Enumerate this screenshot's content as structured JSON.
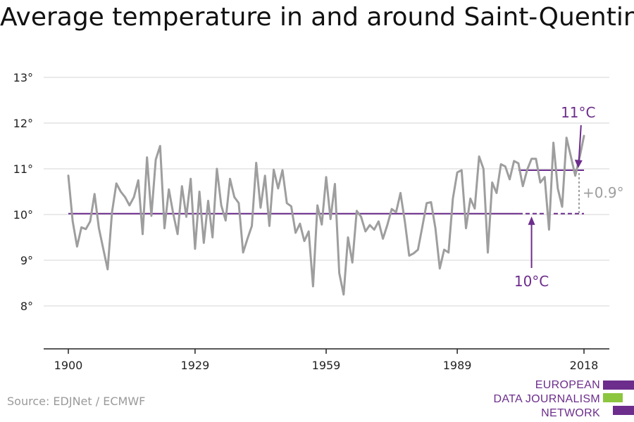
{
  "title": "Average temperature in and around Saint-Quentin",
  "source": "Source: EDJNet / ECMWF",
  "logo": {
    "lines": [
      "EUROPEAN",
      "DATA JOURNALISM",
      "NETWORK"
    ],
    "colors": {
      "purple": "#6c2d8c",
      "green": "#8cc63f"
    }
  },
  "colors": {
    "series": "#9e9e9e",
    "reference": "#6c2d8c",
    "difference": "#9e9e9e",
    "grid": "#dddddd",
    "axis": "#222222",
    "text": "#222222"
  },
  "chart_data": {
    "type": "line",
    "title": "Average temperature in and around Saint-Quentin",
    "xlabel": "",
    "ylabel": "",
    "xlim": [
      1900,
      2018
    ],
    "ylim": [
      7,
      13
    ],
    "y_ticks": [
      8,
      9,
      10,
      11,
      12,
      13
    ],
    "y_tick_labels": [
      "8°",
      "9°",
      "10°",
      "11°",
      "12°",
      "13°"
    ],
    "x_ticks": [
      1900,
      1929,
      1959,
      1989,
      2018
    ],
    "x_tick_labels": [
      "1900",
      "1929",
      "1959",
      "1989",
      "2018"
    ],
    "grid": true,
    "series": [
      {
        "x": [
          1900,
          1901,
          1902,
          1903,
          1904,
          1905,
          1906,
          1907,
          1908,
          1909,
          1910,
          1911,
          1912,
          1913,
          1914,
          1915,
          1916,
          1917,
          1918,
          1919,
          1920,
          1921,
          1922,
          1923,
          1924,
          1925,
          1926,
          1927,
          1928,
          1929,
          1930,
          1931,
          1932,
          1933,
          1934,
          1935,
          1936,
          1937,
          1938,
          1939,
          1940,
          1941,
          1942,
          1943,
          1944,
          1945,
          1946,
          1947,
          1948,
          1949,
          1950,
          1951,
          1952,
          1953,
          1954,
          1955,
          1956,
          1957,
          1958,
          1959,
          1960,
          1961,
          1962,
          1963,
          1964,
          1965,
          1966,
          1967,
          1968,
          1969,
          1970,
          1971,
          1972,
          1973,
          1974,
          1975,
          1976,
          1977,
          1978,
          1979,
          1980,
          1981,
          1982,
          1983,
          1984,
          1985,
          1986,
          1987,
          1988,
          1989,
          1990,
          1991,
          1992,
          1993,
          1994,
          1995,
          1996,
          1997,
          1998,
          1999,
          2000,
          2001,
          2002,
          2003,
          2004,
          2005,
          2006,
          2007,
          2008,
          2009,
          2010,
          2011,
          2012,
          2013,
          2014,
          2015,
          2016,
          2017,
          2018
        ],
        "values": [
          10.85,
          9.85,
          9.3,
          9.72,
          9.68,
          9.85,
          10.45,
          9.7,
          9.25,
          8.8,
          10.05,
          10.68,
          10.5,
          10.38,
          10.2,
          10.38,
          10.75,
          9.57,
          11.25,
          9.97,
          11.2,
          11.5,
          9.7,
          10.55,
          10.02,
          9.57,
          10.62,
          9.95,
          10.78,
          9.25,
          10.5,
          9.38,
          10.3,
          9.5,
          11.0,
          10.2,
          9.87,
          10.78,
          10.38,
          10.25,
          9.17,
          9.47,
          9.75,
          11.13,
          10.15,
          10.85,
          9.75,
          10.98,
          10.57,
          10.97,
          10.25,
          10.18,
          9.6,
          9.8,
          9.42,
          9.63,
          8.43,
          10.2,
          9.78,
          10.82,
          9.9,
          10.67,
          8.72,
          8.25,
          9.5,
          8.95,
          10.08,
          9.95,
          9.63,
          9.77,
          9.67,
          9.85,
          9.47,
          9.77,
          10.12,
          10.05,
          10.47,
          9.85,
          9.1,
          9.15,
          9.23,
          9.73,
          10.25,
          10.27,
          9.7,
          8.82,
          9.23,
          9.17,
          10.35,
          10.92,
          10.97,
          9.7,
          10.35,
          10.13,
          11.27,
          11.0,
          9.17,
          10.7,
          10.47,
          11.1,
          11.05,
          10.77,
          11.17,
          11.12,
          10.62,
          10.98,
          11.22,
          11.22,
          10.7,
          10.82,
          9.67,
          11.57,
          10.57,
          10.17,
          11.68,
          11.27,
          10.85,
          11.25,
          11.72
        ]
      }
    ],
    "reference_lines": [
      {
        "label": "10°C",
        "value": 10.02,
        "solid_from": 1900,
        "solid_to": 2003,
        "dashed_to": 2018
      },
      {
        "label": "11°C",
        "value": 10.97,
        "solid_from": 2003,
        "solid_to": 2018
      }
    ],
    "difference_label": "+0.9°"
  }
}
